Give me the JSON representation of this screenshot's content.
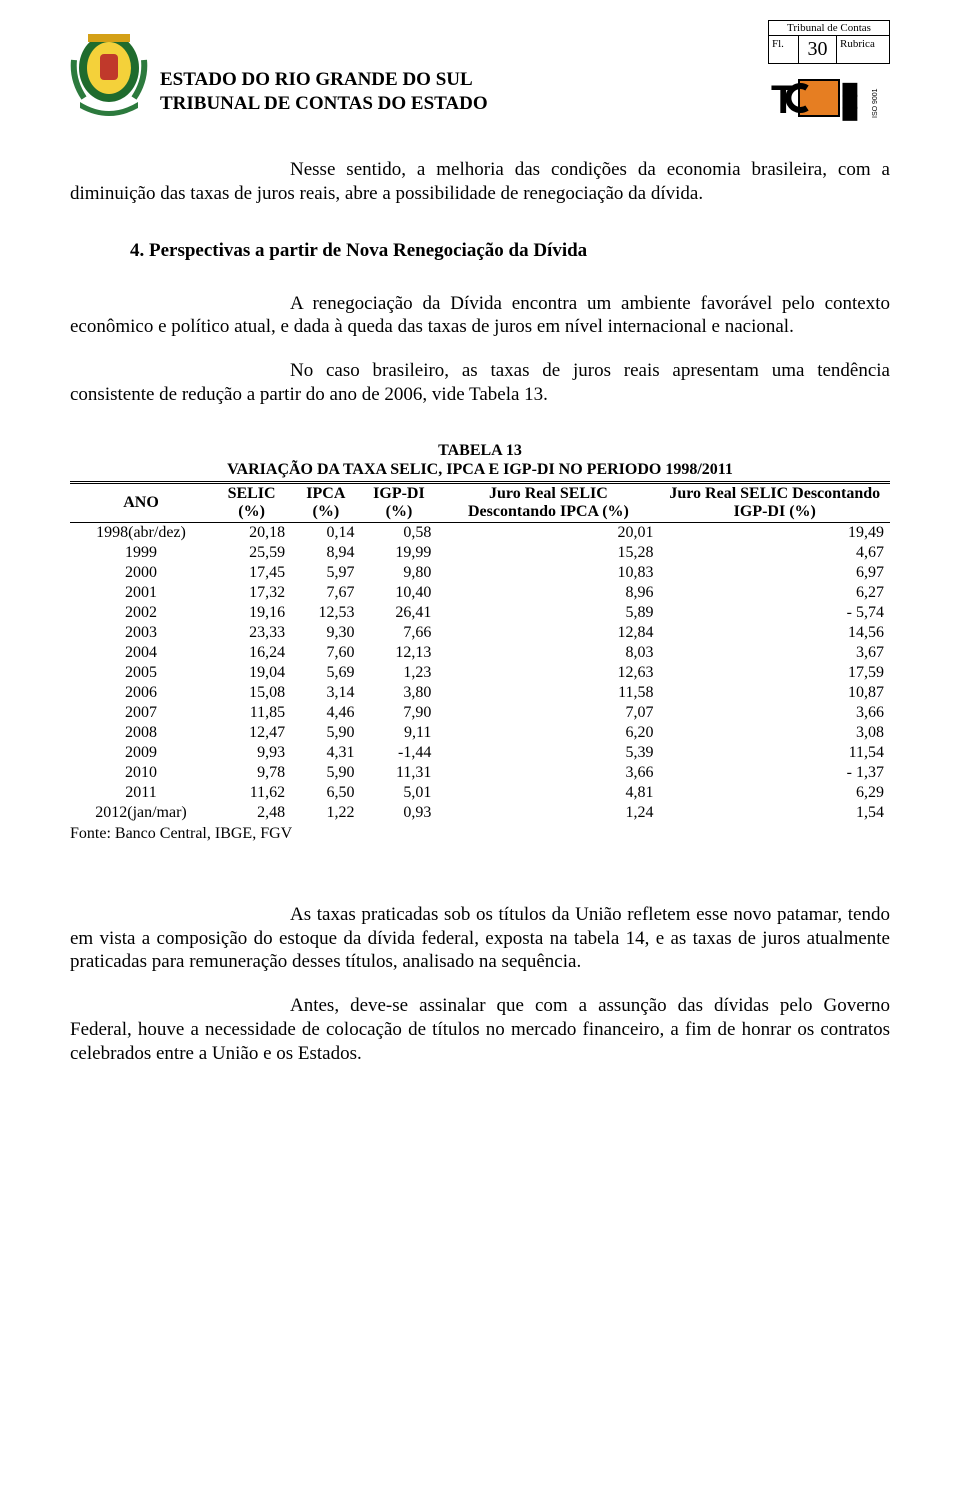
{
  "header": {
    "line1": "ESTADO DO RIO GRANDE DO SUL",
    "line2": "TRIBUNAL DE CONTAS DO ESTADO",
    "stamp_title": "Tribunal de Contas",
    "stamp_fl": "Fl.",
    "stamp_rubrica": "Rubrica",
    "stamp_page": "30",
    "iso_text": "ISO 9001"
  },
  "body": {
    "p1": "Nesse sentido, a melhoria das condições da economia brasileira, com a diminuição das taxas de juros reais, abre a possibilidade de renegociação da dívida.",
    "section": "4. Perspectivas a partir de Nova Renegociação da Dívida",
    "p2": "A renegociação da Dívida encontra um ambiente favorável pelo contexto econômico e político atual, e dada à queda das taxas de juros em nível internacional e nacional.",
    "p3": "No caso brasileiro, as taxas de juros reais apresentam uma tendência consistente de redução a partir do ano de 2006, vide Tabela 13.",
    "p4": "As taxas praticadas sob os títulos da União refletem esse novo patamar, tendo em vista a composição do estoque da dívida federal, exposta na tabela 14, e as taxas de juros atualmente praticadas para remuneração desses títulos, analisado na sequência.",
    "p5": "Antes, deve-se assinalar que com a assunção das dívidas pelo Governo Federal, houve a necessidade de colocação de títulos no mercado financeiro, a fim de honrar os contratos celebrados entre a União e os Estados."
  },
  "table": {
    "title_l1": "TABELA 13",
    "title_l2": "VARIAÇÃO DA TAXA SELIC, IPCA E IGP-DI NO PERIODO 1998/2011",
    "columns": [
      "ANO",
      "SELIC (%)",
      "IPCA (%)",
      "IGP-DI (%)",
      "Juro Real SELIC Descontando IPCA (%)",
      "Juro Real SELIC Descontando IGP-DI (%)"
    ],
    "rows": [
      [
        "1998(abr/dez)",
        "20,18",
        "0,14",
        "0,58",
        "20,01",
        "19,49"
      ],
      [
        "1999",
        "25,59",
        "8,94",
        "19,99",
        "15,28",
        "4,67"
      ],
      [
        "2000",
        "17,45",
        "5,97",
        "9,80",
        "10,83",
        "6,97"
      ],
      [
        "2001",
        "17,32",
        "7,67",
        "10,40",
        "8,96",
        "6,27"
      ],
      [
        "2002",
        "19,16",
        "12,53",
        "26,41",
        "5,89",
        "- 5,74"
      ],
      [
        "2003",
        "23,33",
        "9,30",
        "7,66",
        "12,84",
        "14,56"
      ],
      [
        "2004",
        "16,24",
        "7,60",
        "12,13",
        "8,03",
        "3,67"
      ],
      [
        "2005",
        "19,04",
        "5,69",
        "1,23",
        "12,63",
        "17,59"
      ],
      [
        "2006",
        "15,08",
        "3,14",
        "3,80",
        "11,58",
        "10,87"
      ],
      [
        "2007",
        "11,85",
        "4,46",
        "7,90",
        "7,07",
        "3,66"
      ],
      [
        "2008",
        "12,47",
        "5,90",
        "9,11",
        "6,20",
        "3,08"
      ],
      [
        "2009",
        "9,93",
        "4,31",
        "-1,44",
        "5,39",
        "11,54"
      ],
      [
        "2010",
        "9,78",
        "5,90",
        "11,31",
        "3,66",
        "- 1,37"
      ],
      [
        "2011",
        "11,62",
        "6,50",
        "5,01",
        "4,81",
        "6,29"
      ],
      [
        "2012(jan/mar)",
        "2,48",
        "1,22",
        "0,93",
        "1,24",
        "1,54"
      ]
    ],
    "source": "Fonte: Banco Central, IBGE, FGV"
  }
}
